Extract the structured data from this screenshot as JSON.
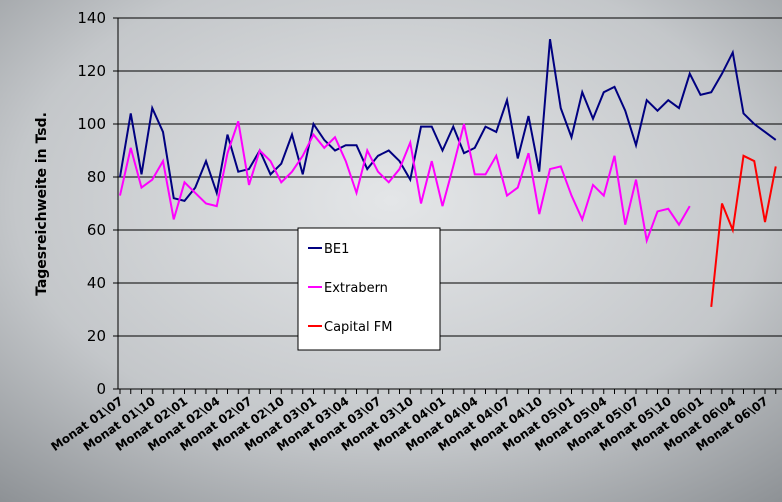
{
  "chart_data": {
    "type": "line",
    "y_label": "Tagesreichweite in Tsd.",
    "categories": [
      "Monat 01\\07",
      null,
      null,
      "Monat 01\\10",
      null,
      null,
      "Monat 02\\01",
      null,
      null,
      "Monat 02\\04",
      null,
      null,
      "Monat 02\\07",
      null,
      null,
      "Monat 02\\10",
      null,
      null,
      "Monat 03\\01",
      null,
      null,
      "Monat 03\\04",
      null,
      null,
      "Monat 03\\07",
      null,
      null,
      "Monat 03\\10",
      null,
      null,
      "Monat 04\\01",
      null,
      null,
      "Monat 04\\04",
      null,
      null,
      "Monat 04\\07",
      null,
      null,
      "Monat 04\\10",
      null,
      null,
      "Monat 05\\01",
      null,
      null,
      "Monat 05\\04",
      null,
      null,
      "Monat 05\\07",
      null,
      null,
      "Monat 05\\10",
      null,
      null,
      "Monat 06\\01",
      null,
      null,
      "Monat 06\\04",
      null,
      null,
      "Monat 06\\07",
      null
    ],
    "series": [
      {
        "name": "BE1",
        "color": "#000080",
        "values": [
          80,
          104,
          81,
          106,
          97,
          72,
          71,
          76,
          86,
          74,
          96,
          82,
          83,
          90,
          81,
          85,
          96,
          81,
          100,
          94,
          90,
          92,
          92,
          83,
          88,
          90,
          86,
          79,
          99,
          99,
          90,
          99,
          89,
          91,
          99,
          97,
          109,
          87,
          103,
          82,
          132,
          106,
          95,
          112,
          102,
          112,
          114,
          105,
          92,
          109,
          105,
          109,
          106,
          119,
          111,
          112,
          119,
          127,
          104,
          100,
          97,
          94
        ]
      },
      {
        "name": "Extrabern",
        "color": "#ff00ff",
        "values": [
          73,
          91,
          76,
          79,
          86,
          64,
          78,
          74,
          70,
          69,
          89,
          101,
          77,
          90,
          86,
          78,
          82,
          88,
          96,
          91,
          95,
          86,
          74,
          90,
          82,
          78,
          83,
          93,
          70,
          86,
          69,
          84,
          100,
          81,
          81,
          88,
          73,
          76,
          89,
          66,
          83,
          84,
          73,
          64,
          77,
          73,
          88,
          62,
          79,
          56,
          67,
          68,
          62,
          69,
          null,
          null,
          null,
          null,
          null,
          null,
          null,
          null
        ]
      },
      {
        "name": "Capital FM",
        "color": "#ff0000",
        "values": [
          null,
          null,
          null,
          null,
          null,
          null,
          null,
          null,
          null,
          null,
          null,
          null,
          null,
          null,
          null,
          null,
          null,
          null,
          null,
          null,
          null,
          null,
          null,
          null,
          null,
          null,
          null,
          null,
          null,
          null,
          null,
          null,
          null,
          null,
          null,
          null,
          null,
          null,
          null,
          null,
          null,
          null,
          null,
          null,
          null,
          null,
          null,
          null,
          null,
          null,
          null,
          null,
          null,
          null,
          null,
          31,
          70,
          60,
          88,
          86,
          63,
          84
        ]
      }
    ],
    "ylim": [
      0,
      140
    ],
    "yticks": [
      0,
      20,
      40,
      60,
      80,
      100,
      120,
      140
    ],
    "grid": true,
    "legend": "center"
  }
}
